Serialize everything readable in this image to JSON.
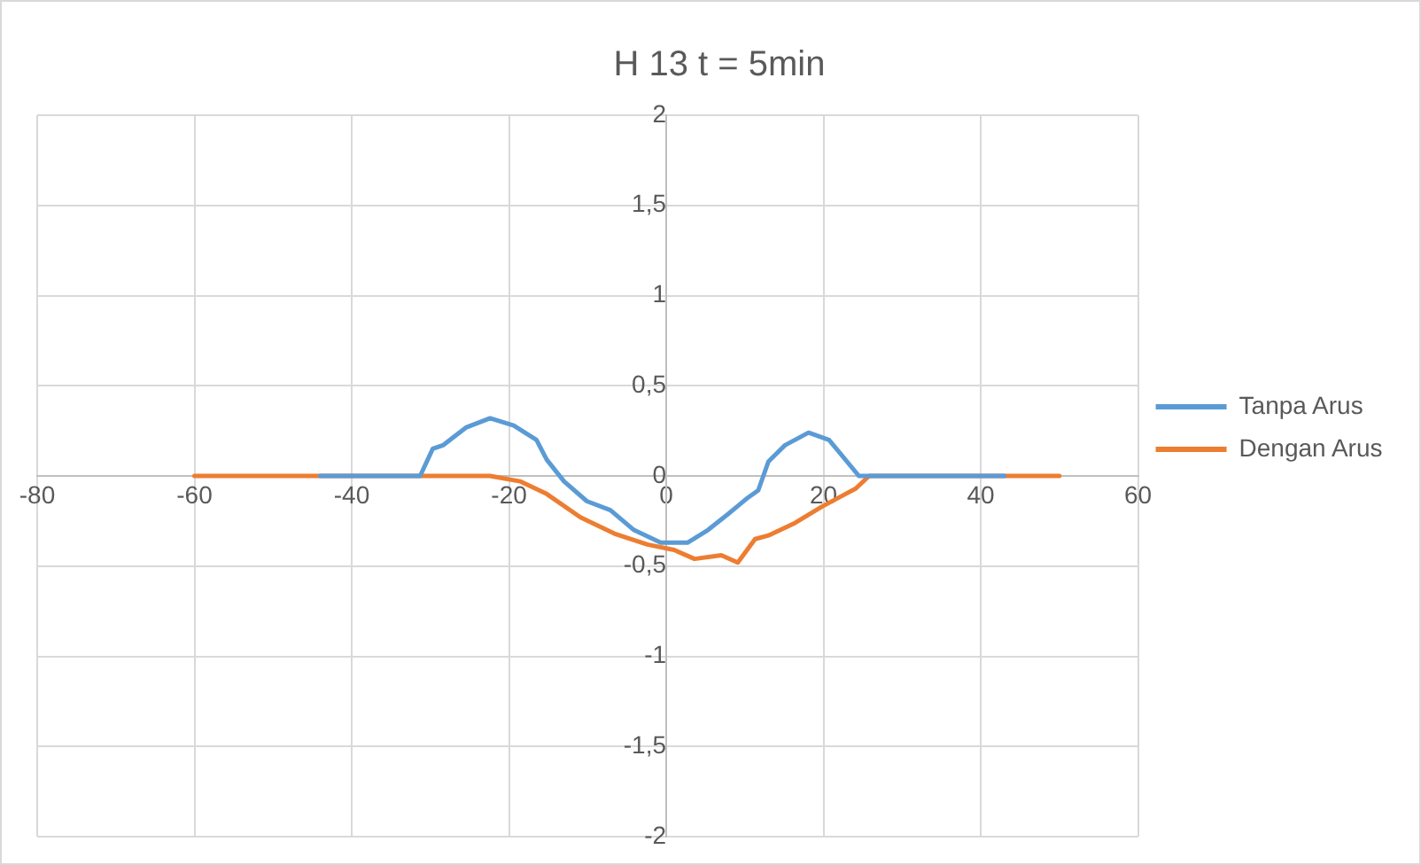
{
  "chart_data": {
    "type": "line",
    "title": "H 13 t = 5min",
    "xlim": [
      -80,
      60
    ],
    "xticks": [
      -80,
      -60,
      -40,
      -20,
      0,
      20,
      40,
      60
    ],
    "ylim": [
      -2,
      2
    ],
    "yticks": [
      -2,
      {
        "value": -1.5,
        "label": "-1,5"
      },
      -1,
      {
        "value": -0.5,
        "label": "-0,5"
      },
      0,
      {
        "value": 0.5,
        "label": "0,5"
      },
      1,
      {
        "value": 1.5,
        "label": "1,5"
      },
      2
    ],
    "grid": true,
    "legend": "right",
    "marker": "none",
    "line_style": "solid",
    "series": [
      {
        "name": "Tanpa Arus",
        "color": "#5b9bd5",
        "x": [
          -44,
          -31.3,
          -29.7,
          -28.4,
          -25.4,
          -22.4,
          -19.4,
          -16.5,
          -15.2,
          -13,
          -10.1,
          -7.1,
          -4.1,
          -0.7,
          2.7,
          5.3,
          7.9,
          10.4,
          11.7,
          13,
          15.1,
          18.1,
          20.7,
          24.5,
          43
        ],
        "values": [
          0,
          0,
          0.15,
          0.17,
          0.27,
          0.32,
          0.28,
          0.2,
          0.09,
          -0.03,
          -0.14,
          -0.19,
          -0.3,
          -0.37,
          -0.37,
          -0.3,
          -0.21,
          -0.12,
          -0.08,
          0.08,
          0.17,
          0.24,
          0.2,
          0,
          0
        ]
      },
      {
        "name": "Dengan Arus",
        "color": "#ed7d31",
        "x": [
          -60,
          -22.4,
          -18.6,
          -15.2,
          -10.9,
          -6.6,
          -2.4,
          1,
          3.6,
          7,
          9.1,
          11.3,
          13,
          16.4,
          19.8,
          22.8,
          24.1,
          25.8,
          50
        ],
        "values": [
          0,
          0,
          -0.03,
          -0.1,
          -0.23,
          -0.32,
          -0.38,
          -0.41,
          -0.46,
          -0.44,
          -0.48,
          -0.35,
          -0.33,
          -0.26,
          -0.17,
          -0.1,
          -0.07,
          0,
          0
        ]
      }
    ]
  }
}
